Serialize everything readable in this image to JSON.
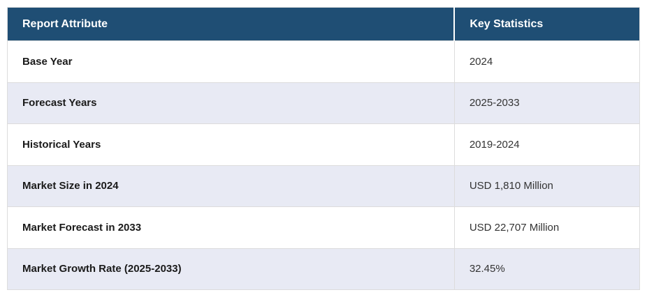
{
  "chart_data": {
    "type": "table",
    "columns": [
      "Report Attribute",
      "Key Statistics"
    ],
    "rows": [
      [
        "Base Year",
        "2024"
      ],
      [
        "Forecast Years",
        "2025-2033"
      ],
      [
        "Historical Years",
        "2019-2024"
      ],
      [
        "Market Size in 2024",
        "USD 1,810 Million"
      ],
      [
        "Market Forecast in 2033",
        "USD 22,707 Million"
      ],
      [
        "Market Growth Rate (2025-2033)",
        "32.45%"
      ]
    ]
  },
  "table": {
    "headers": [
      {
        "label": "Report Attribute"
      },
      {
        "label": "Key Statistics"
      }
    ],
    "rows": [
      {
        "attribute": "Base Year",
        "value": "2024"
      },
      {
        "attribute": "Forecast Years",
        "value": "2025-2033"
      },
      {
        "attribute": "Historical Years",
        "value": "2019-2024"
      },
      {
        "attribute": "Market Size in 2024",
        "value": "USD 1,810 Million"
      },
      {
        "attribute": "Market Forecast in 2033",
        "value": "USD 22,707 Million"
      },
      {
        "attribute": "Market Growth Rate (2025-2033)",
        "value": "32.45%"
      }
    ]
  },
  "colors": {
    "header_bg": "#1f4e74",
    "header_text": "#ffffff",
    "row_bg": "#ffffff",
    "row_alt_bg": "#e8eaf4",
    "border": "#dcdcdc",
    "attribute_text": "#1a1a1a",
    "value_text": "#333333"
  }
}
